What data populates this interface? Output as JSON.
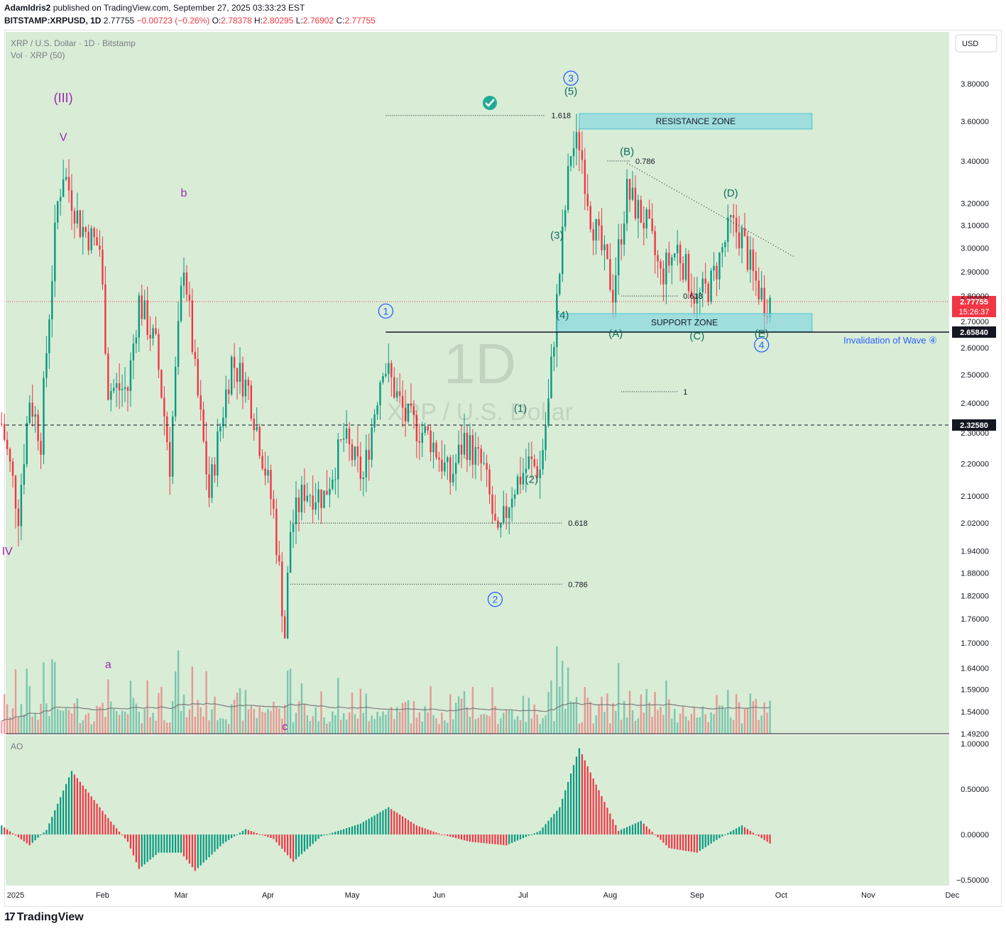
{
  "header": {
    "publisher_line_author": "AdamIdris2",
    "publisher_line_rest": " published on TradingView.com, September 27, 2025 03:33:23 EST",
    "symbol": "BITSTAMP:XRPUSD, 1D",
    "last": "2.77755",
    "change": "−0.00723 (−0.26%)",
    "open": "2.78378",
    "high": "2.80295",
    "low": "2.76902",
    "close": "2.77755",
    "o_label": "O:",
    "h_label": "H:",
    "l_label": "L:",
    "c_label": "C:"
  },
  "pane_legend": {
    "title": "XRP / U.S. Dollar · 1D · Bitstamp",
    "volume": "Vol · XRP (50)",
    "ao": "AO",
    "currency_button": "USD"
  },
  "watermark": {
    "big": "1D",
    "small": "XRP / U.S. Dollar"
  },
  "footer": {
    "brand": "TradingView",
    "logo": "17"
  },
  "colors": {
    "bg_fill": "#d9ecd6",
    "up": "#089981",
    "down": "#f23645",
    "zone": "#7fd7e0",
    "wave_blue": "#2962ff",
    "wave_purple": "#9c27b0",
    "wave_teal": "#0b6e5a",
    "label_red": "#f23645",
    "label_dark": "#131722"
  },
  "chart_data": {
    "type": "candlestick",
    "scale": "log",
    "ylim": [
      1.492,
      3.87
    ],
    "y_ticks": [
      "3.80000",
      "3.60000",
      "3.40000",
      "3.20000",
      "3.10000",
      "3.00000",
      "2.90000",
      "2.80000",
      "2.70000",
      "2.60000",
      "2.50000",
      "2.40000",
      "2.30000",
      "2.20000",
      "2.10000",
      "2.02000",
      "1.94000",
      "1.88000",
      "1.82000",
      "1.76000",
      "1.70000",
      "1.64000",
      "1.59000",
      "1.54000",
      "1.49200"
    ],
    "x_ticks": [
      {
        "label": "2025",
        "date": "2025-01-01"
      },
      {
        "label": "Feb",
        "date": "2025-02-01"
      },
      {
        "label": "Mar",
        "date": "2025-03-01"
      },
      {
        "label": "Apr",
        "date": "2025-04-01"
      },
      {
        "label": "May",
        "date": "2025-05-01"
      },
      {
        "label": "Jun",
        "date": "2025-06-01"
      },
      {
        "label": "Jul",
        "date": "2025-07-01"
      },
      {
        "label": "Aug",
        "date": "2025-08-01"
      },
      {
        "label": "Sep",
        "date": "2025-09-01"
      },
      {
        "label": "Oct",
        "date": "2025-10-01"
      },
      {
        "label": "Nov",
        "date": "2025-11-01"
      },
      {
        "label": "Dec",
        "date": "2025-12-01"
      }
    ],
    "price_path": [
      [
        "2024-12-27",
        2.33
      ],
      [
        "2025-01-02",
        2.05
      ],
      [
        "2025-01-06",
        2.42
      ],
      [
        "2025-01-10",
        2.28
      ],
      [
        "2025-01-16",
        3.2
      ],
      [
        "2025-01-18",
        3.35
      ],
      [
        "2025-01-24",
        3.1
      ],
      [
        "2025-01-31",
        3.0
      ],
      [
        "2025-02-03",
        2.45
      ],
      [
        "2025-02-10",
        2.45
      ],
      [
        "2025-02-14",
        2.78
      ],
      [
        "2025-02-20",
        2.6
      ],
      [
        "2025-02-25",
        2.2
      ],
      [
        "2025-03-02",
        2.95
      ],
      [
        "2025-03-06",
        2.5
      ],
      [
        "2025-03-11",
        2.1
      ],
      [
        "2025-03-19",
        2.55
      ],
      [
        "2025-03-25",
        2.45
      ],
      [
        "2025-04-03",
        2.05
      ],
      [
        "2025-04-07",
        1.72
      ],
      [
        "2025-04-09",
        2.0
      ],
      [
        "2025-04-14",
        2.12
      ],
      [
        "2025-04-21",
        2.1
      ],
      [
        "2025-04-28",
        2.28
      ],
      [
        "2025-05-05",
        2.15
      ],
      [
        "2025-05-12",
        2.55
      ],
      [
        "2025-05-20",
        2.35
      ],
      [
        "2025-05-29",
        2.28
      ],
      [
        "2025-06-05",
        2.15
      ],
      [
        "2025-06-10",
        2.28
      ],
      [
        "2025-06-17",
        2.18
      ],
      [
        "2025-06-22",
        1.96
      ],
      [
        "2025-06-27",
        2.12
      ],
      [
        "2025-07-03",
        2.2
      ],
      [
        "2025-07-07",
        2.18
      ],
      [
        "2025-07-10",
        2.4
      ],
      [
        "2025-07-14",
        2.9
      ],
      [
        "2025-07-18",
        3.45
      ],
      [
        "2025-07-21",
        3.5
      ],
      [
        "2025-07-25",
        3.15
      ],
      [
        "2025-08-02",
        2.82
      ],
      [
        "2025-08-07",
        3.25
      ],
      [
        "2025-08-14",
        3.1
      ],
      [
        "2025-08-19",
        2.88
      ],
      [
        "2025-08-25",
        3.0
      ],
      [
        "2025-09-01",
        2.78
      ],
      [
        "2025-09-06",
        2.85
      ],
      [
        "2025-09-13",
        3.1
      ],
      [
        "2025-09-17",
        3.05
      ],
      [
        "2025-09-21",
        2.88
      ],
      [
        "2025-09-25",
        2.78
      ],
      [
        "2025-09-27",
        2.78
      ]
    ],
    "key_levels": [
      {
        "price": 2.7775,
        "label": "2.77755",
        "countdown": "15:26:37",
        "style": "last-price"
      },
      {
        "price": 2.6584,
        "label": "2.65840",
        "style": "solid"
      },
      {
        "price": 2.3258,
        "label": "2.32580",
        "style": "dashed"
      }
    ],
    "zones": [
      {
        "label": "RESISTANCE ZONE",
        "from": "2025-07-21",
        "to": "2025-10-12",
        "low": 3.56,
        "high": 3.64
      },
      {
        "label": "SUPPORT ZONE",
        "from": "2025-07-13",
        "to": "2025-10-12",
        "low": 2.66,
        "high": 2.73
      }
    ],
    "fib_levels": [
      {
        "label": "1.618",
        "from": "2025-05-13",
        "to": "2025-07-09",
        "price": 3.63
      },
      {
        "label": "0.786",
        "from": "2025-07-31",
        "to": "2025-08-08",
        "price": 3.4
      },
      {
        "label": "0.618",
        "from": "2025-08-05",
        "to": "2025-08-25",
        "price": 2.8
      },
      {
        "label": "1",
        "from": "2025-08-05",
        "to": "2025-08-25",
        "price": 2.44
      },
      {
        "label": "0.618",
        "from": "2025-04-09",
        "to": "2025-07-15",
        "price": 2.02
      },
      {
        "label": "0.786",
        "from": "2025-04-09",
        "to": "2025-07-15",
        "price": 1.85
      }
    ],
    "trendline": [
      {
        "date": "2025-08-07",
        "price": 3.39
      },
      {
        "date": "2025-10-06",
        "price": 2.96
      }
    ],
    "annotations": [
      {
        "text": "(III)",
        "date": "2025-01-18",
        "price": 3.7,
        "color": "purple",
        "size": 18
      },
      {
        "text": "V",
        "date": "2025-01-18",
        "price": 3.5,
        "color": "purple",
        "size": 16
      },
      {
        "text": "b",
        "date": "2025-03-02",
        "price": 3.23,
        "color": "purple",
        "size": 16
      },
      {
        "text": "IV",
        "date": "2024-12-29",
        "price": 1.93,
        "color": "purple",
        "size": 16
      },
      {
        "text": "a",
        "date": "2025-02-03",
        "price": 1.64,
        "color": "purple",
        "size": 16
      },
      {
        "text": "c",
        "date": "2025-04-07",
        "price": 1.5,
        "color": "purple",
        "size": 16
      },
      {
        "text": "1",
        "date": "2025-05-13",
        "price": 2.74,
        "color": "blue",
        "circle": true
      },
      {
        "text": "2",
        "date": "2025-06-21",
        "price": 1.81,
        "color": "blue",
        "circle": true
      },
      {
        "text": "3",
        "date": "2025-07-18",
        "price": 3.83,
        "color": "blue",
        "circle": true
      },
      {
        "text": "4",
        "date": "2025-09-24",
        "price": 2.61,
        "color": "blue",
        "circle": true
      },
      {
        "text": "(5)",
        "date": "2025-07-18",
        "price": 3.74,
        "color": "teal"
      },
      {
        "text": "(1)",
        "date": "2025-06-30",
        "price": 2.37,
        "color": "teal"
      },
      {
        "text": "(2)",
        "date": "2025-07-04",
        "price": 2.14,
        "color": "teal"
      },
      {
        "text": "(3)",
        "date": "2025-07-13",
        "price": 3.04,
        "color": "teal"
      },
      {
        "text": "(4)",
        "date": "2025-07-15",
        "price": 2.71,
        "color": "teal"
      },
      {
        "text": "(A)",
        "date": "2025-08-03",
        "price": 2.64,
        "color": "teal"
      },
      {
        "text": "(B)",
        "date": "2025-08-07",
        "price": 3.43,
        "color": "teal"
      },
      {
        "text": "(C)",
        "date": "2025-09-01",
        "price": 2.63,
        "color": "teal"
      },
      {
        "text": "(D)",
        "date": "2025-09-13",
        "price": 3.23,
        "color": "teal"
      },
      {
        "text": "(E)",
        "date": "2025-09-24",
        "price": 2.64,
        "color": "teal"
      }
    ],
    "invalidation_label": "Invalidation of Wave ④",
    "volume_ma_start": 1.2,
    "ao": {
      "ylim": [
        -0.5,
        1.0
      ],
      "y_ticks": [
        "1.00000",
        "0.50000",
        "0.00000",
        "−0.50000"
      ],
      "path": [
        [
          "2024-12-27",
          0.1
        ],
        [
          "2025-01-06",
          -0.12
        ],
        [
          "2025-01-12",
          0.05
        ],
        [
          "2025-01-21",
          0.7
        ],
        [
          "2025-02-03",
          0.18
        ],
        [
          "2025-02-10",
          -0.08
        ],
        [
          "2025-02-14",
          -0.38
        ],
        [
          "2025-02-21",
          -0.2
        ],
        [
          "2025-03-01",
          -0.2
        ],
        [
          "2025-03-06",
          -0.4
        ],
        [
          "2025-03-16",
          -0.1
        ],
        [
          "2025-03-24",
          0.06
        ],
        [
          "2025-04-03",
          -0.05
        ],
        [
          "2025-04-10",
          -0.3
        ],
        [
          "2025-04-20",
          -0.02
        ],
        [
          "2025-05-04",
          0.12
        ],
        [
          "2025-05-14",
          0.3
        ],
        [
          "2025-05-24",
          0.1
        ],
        [
          "2025-06-02",
          0.0
        ],
        [
          "2025-06-12",
          -0.08
        ],
        [
          "2025-06-25",
          -0.12
        ],
        [
          "2025-07-07",
          0.04
        ],
        [
          "2025-07-14",
          0.3
        ],
        [
          "2025-07-21",
          0.95
        ],
        [
          "2025-07-27",
          0.55
        ],
        [
          "2025-08-04",
          0.04
        ],
        [
          "2025-08-12",
          0.15
        ],
        [
          "2025-08-22",
          -0.15
        ],
        [
          "2025-09-01",
          -0.2
        ],
        [
          "2025-09-11",
          0.0
        ],
        [
          "2025-09-17",
          0.1
        ],
        [
          "2025-09-27",
          -0.1
        ]
      ]
    }
  }
}
